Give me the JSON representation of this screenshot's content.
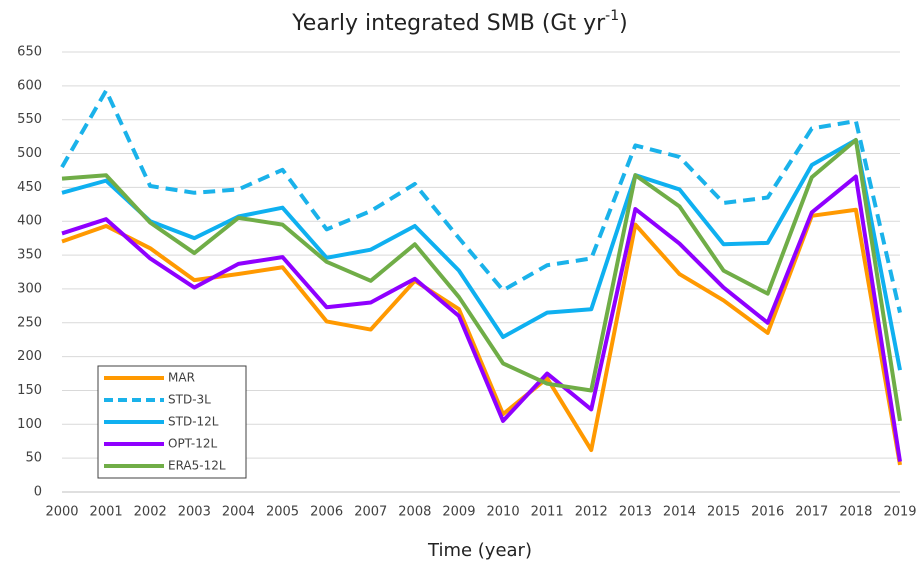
{
  "chart_data": {
    "type": "line",
    "title": [
      "Yearly integrated SMB (Gt yr",
      "-1",
      ")"
    ],
    "x_label": "Time (year)",
    "categories": [
      "2000",
      "2001",
      "2002",
      "2003",
      "2004",
      "2005",
      "2006",
      "2007",
      "2008",
      "2009",
      "2010",
      "2011",
      "2012",
      "2013",
      "2014",
      "2015",
      "2016",
      "2017",
      "2018",
      "2019"
    ],
    "series": [
      {
        "name": "MAR",
        "color": "#ff9900",
        "dashed": false,
        "values": [
          370,
          393,
          360,
          313,
          322,
          332,
          252,
          240,
          312,
          270,
          115,
          168,
          62,
          395,
          322,
          283,
          235,
          408,
          417,
          40
        ]
      },
      {
        "name": "STD-3L",
        "color": "#1ab2ea",
        "dashed": true,
        "values": [
          480,
          593,
          452,
          442,
          447,
          476,
          388,
          415,
          455,
          375,
          298,
          335,
          345,
          512,
          495,
          427,
          435,
          537,
          548,
          265
        ]
      },
      {
        "name": "STD-12L",
        "color": "#0fb0f0",
        "dashed": false,
        "values": [
          442,
          460,
          400,
          375,
          407,
          420,
          346,
          358,
          393,
          327,
          229,
          265,
          270,
          468,
          447,
          366,
          368,
          483,
          520,
          180
        ]
      },
      {
        "name": "OPT-12L",
        "color": "#8f00ff",
        "dashed": false,
        "values": [
          382,
          403,
          345,
          302,
          337,
          347,
          273,
          280,
          315,
          260,
          105,
          175,
          122,
          418,
          367,
          302,
          250,
          413,
          466,
          45
        ]
      },
      {
        "name": "ERA5-12L",
        "color": "#70ad47",
        "dashed": false,
        "values": [
          463,
          468,
          398,
          353,
          405,
          395,
          340,
          312,
          366,
          288,
          190,
          160,
          150,
          468,
          422,
          327,
          293,
          465,
          520,
          105
        ]
      }
    ],
    "ylim": [
      0,
      650
    ],
    "yticks": [
      0,
      50,
      100,
      150,
      200,
      250,
      300,
      350,
      400,
      450,
      500,
      550,
      600,
      650
    ],
    "grid": true,
    "legend": "lower left"
  }
}
